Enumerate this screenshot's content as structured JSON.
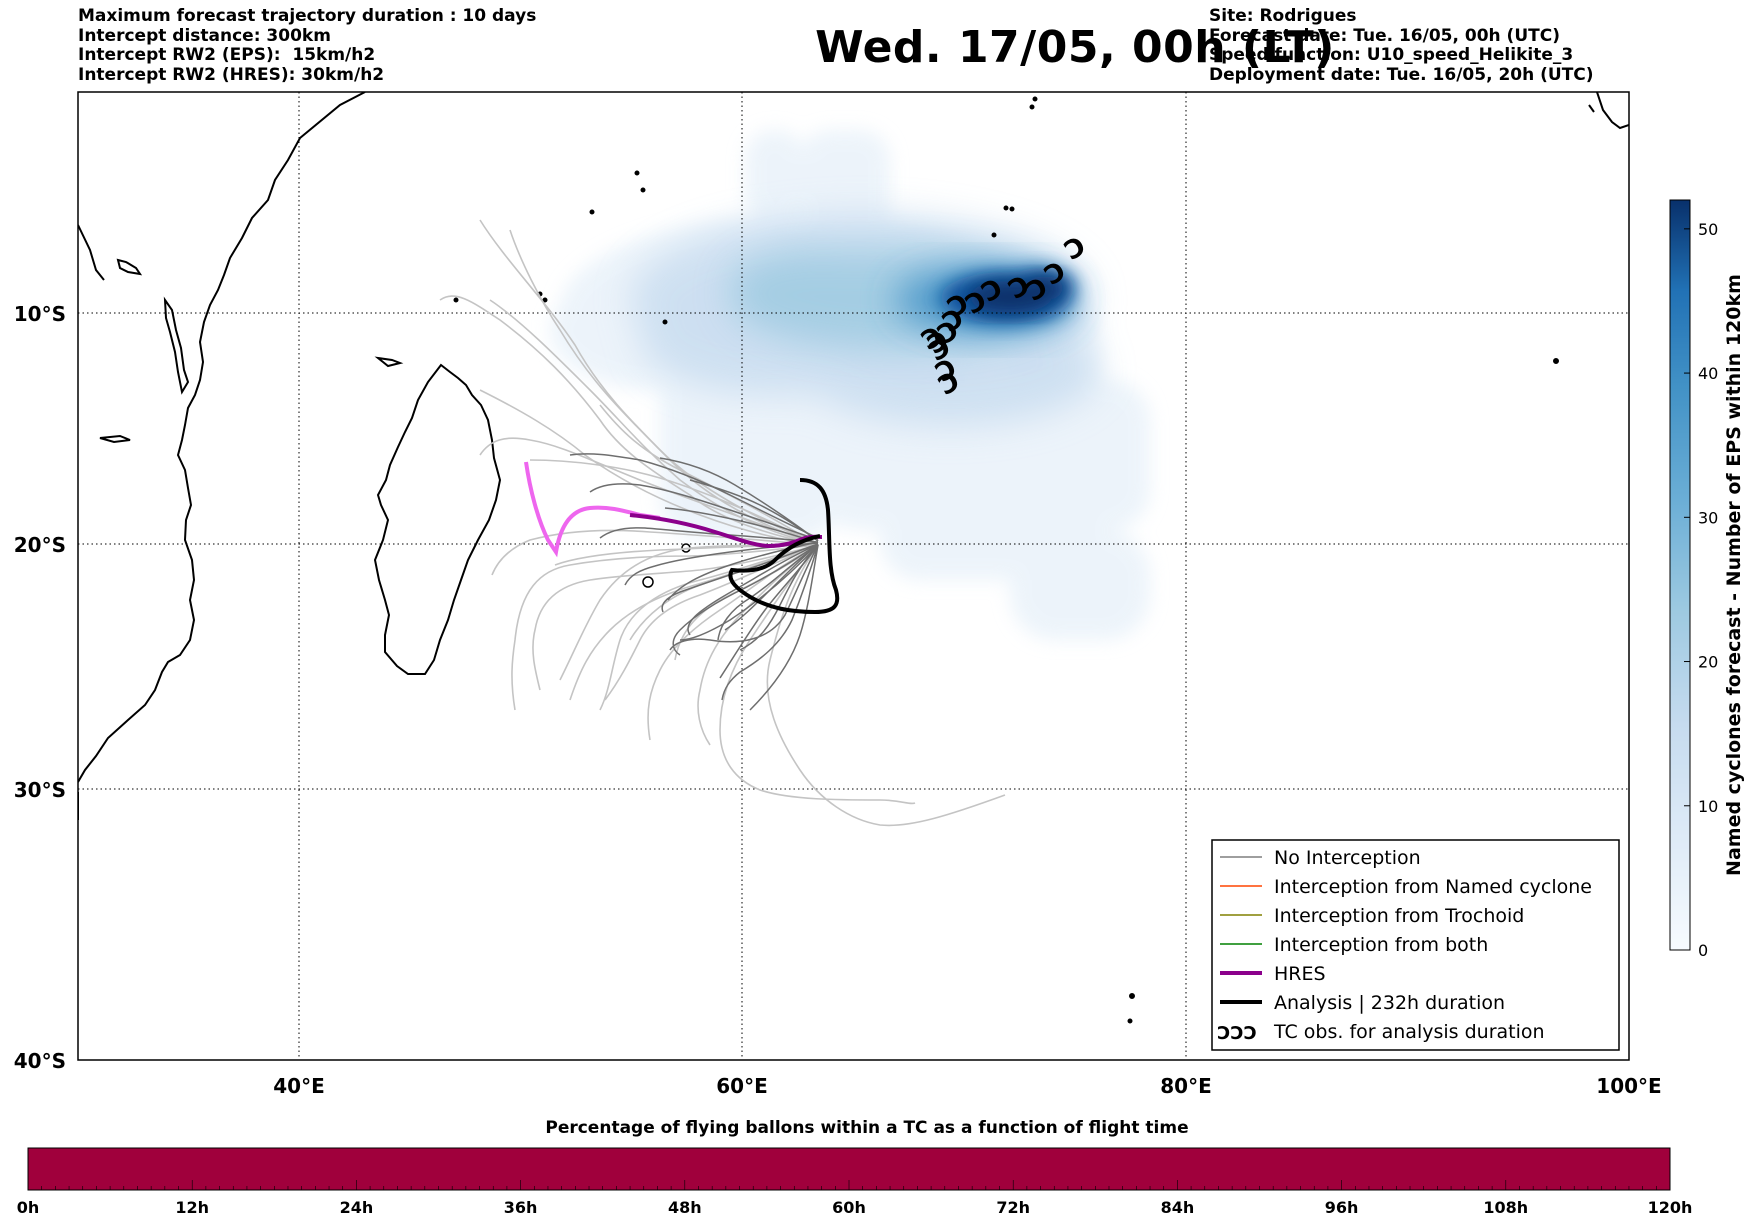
{
  "header": {
    "left_lines": [
      "Maximum forecast trajectory duration : 10 days",
      "Intercept distance: 300km",
      "Intercept RW2 (EPS):  15km/h2",
      "Intercept RW2 (HRES): 30km/h2"
    ],
    "title": "Wed. 17/05, 00h (LT)",
    "right_lines": [
      "Site: Rodrigues",
      "Forecast date: Tue. 16/05, 00h (UTC)",
      "Speed function: U10_speed_Helikite_3",
      "Deployment date: Tue. 16/05, 20h (UTC)"
    ]
  },
  "map": {
    "lon_ticks": [
      "40°E",
      "60°E",
      "80°E",
      "100°E"
    ],
    "lat_ticks": [
      "10°S",
      "20°S",
      "30°S",
      "40°S"
    ],
    "density_color": "#08306b",
    "hres_color": "#8b008b",
    "hres_early_color": "#ee66ee",
    "analysis_color": "#000000",
    "ensemble_color": "#bfbfbf",
    "tc_symbol": "Ɔ"
  },
  "colorbar": {
    "label": "Named cyclones forecast - Number of EPS within 120km",
    "ticks": [
      "0",
      "10",
      "20",
      "30",
      "40",
      "50"
    ],
    "min": 0,
    "max": 52
  },
  "legend": {
    "items": [
      {
        "label": "No Interception",
        "color": "#7f7f7f",
        "style": "thin"
      },
      {
        "label": "Interception from Named cyclone",
        "color": "#ff4500",
        "style": "thin"
      },
      {
        "label": "Interception from Trochoid",
        "color": "#808000",
        "style": "thin"
      },
      {
        "label": "Interception from both",
        "color": "#008000",
        "style": "thin"
      },
      {
        "label": "HRES",
        "color": "#8b008b",
        "style": "thick"
      },
      {
        "label": "Analysis | 232h duration",
        "color": "#000000",
        "style": "thick"
      },
      {
        "label": "TC obs. for analysis duration",
        "color": "#000000",
        "style": "symbol",
        "symbol": "ƆƆƆ"
      }
    ]
  },
  "bottom_bar": {
    "title": "Percentage of flying ballons within a TC as a function of flight time",
    "color": "#a0003c",
    "ticks": [
      "0h",
      "12h",
      "24h",
      "36h",
      "48h",
      "60h",
      "72h",
      "84h",
      "96h",
      "108h",
      "120h"
    ]
  }
}
